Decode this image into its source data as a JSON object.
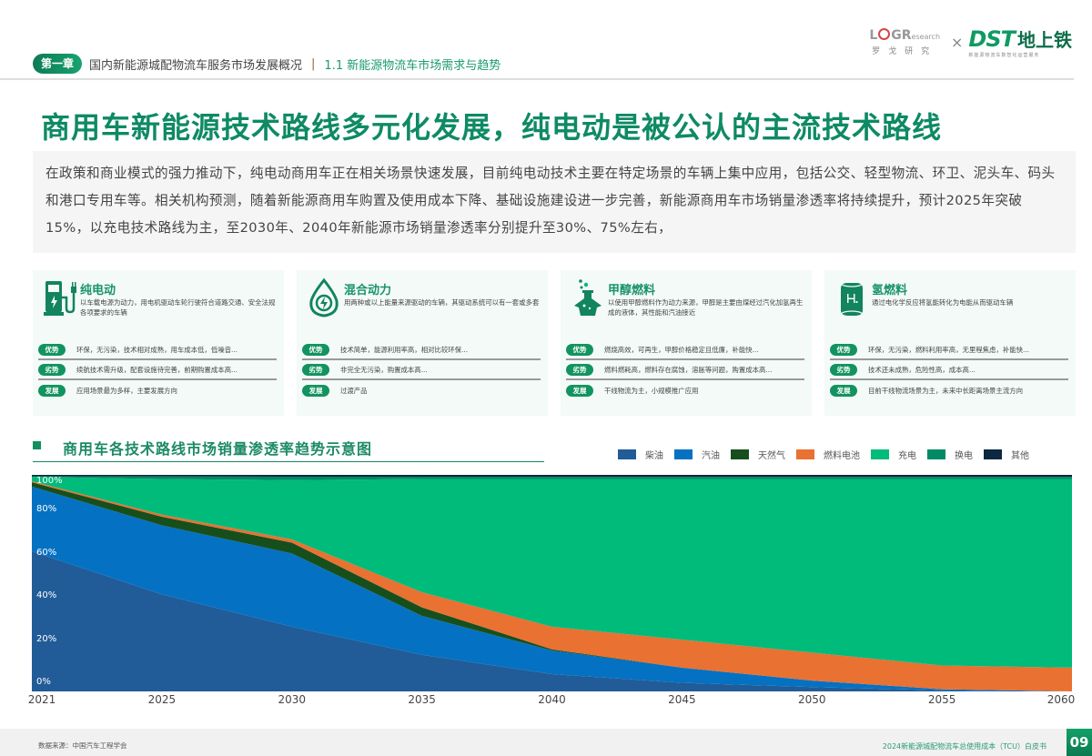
{
  "header": {
    "chapter_badge": "第一章",
    "chapter_title": "国内新能源城配物流车服务市场发展概况",
    "separator": "|",
    "section_title": "1.1 新能源物流车市场需求与趋势",
    "logos": {
      "logr_main_prefix": "L",
      "logr_main_suffix": "GR",
      "logr_small": "esearch",
      "logr_cn": "罗戈研究",
      "cross": "×",
      "dst_mark": "DST",
      "dst_cn": "地上铁",
      "dst_sub": "新能源物流车数智化运营服务"
    }
  },
  "headline": "商用车新能源技术路线多元化发展，纯电动是被公认的主流技术路线",
  "intro": "在政策和商业模式的强力推动下，纯电动商用车正在相关场景快速发展，目前纯电动技术主要在特定场景的车辆上集中应用，包括公交、轻型物流、环卫、泥头车、码头和港口专用车等。相关机构预测，随着新能源商用车购置及使用成本下降、基础设施建设进一步完善，新能源商用车市场销量渗透率将持续提升，预计2025年突破15%，以充电技术路线为主，至2030年、2040年新能源市场销量渗透率分别提升至30%、75%左右，",
  "cards": [
    {
      "icon": "charging-station-icon",
      "title": "纯电动",
      "desc": "以车载电源为动力，用电机驱动车轮行驶符合道路交通、安全法规各项要求的车辆",
      "rows": [
        {
          "tag": "优势",
          "text": "环保，无污染，技术相对成熟，用车成本低，低噪音..."
        },
        {
          "tag": "劣势",
          "text": "续航技术需升级，配套设施待完善，前期购置成本高..."
        },
        {
          "tag": "发展",
          "text": "应用场景最为多样，主要发展方向"
        }
      ]
    },
    {
      "icon": "fuel-drop-bolt-icon",
      "title": "混合动力",
      "desc": "用两种或以上能量来源驱动的车辆，其驱动系统可以有一套或多套",
      "rows": [
        {
          "tag": "优势",
          "text": "技术简单，能源利用率高，相对比较环保..."
        },
        {
          "tag": "劣势",
          "text": "非完全无污染，购置成本高..."
        },
        {
          "tag": "发展",
          "text": "过渡产品"
        }
      ]
    },
    {
      "icon": "flask-icon",
      "title": "甲醇燃料",
      "desc": "以使用甲醇燃料作为动力来源，甲醇是主要由煤经过汽化加氢再生成的液体，其性能和汽油接近",
      "rows": [
        {
          "tag": "优势",
          "text": "燃烧高效，可再生，甲醇价格稳定且低廉，补能快..."
        },
        {
          "tag": "劣势",
          "text": "燃料燃耗高，燃料存在腐蚀，溶胀等问题，购置成本高..."
        },
        {
          "tag": "发展",
          "text": "干线物流为主，小规模推广应用"
        }
      ]
    },
    {
      "icon": "hydrogen-tank-icon",
      "title": "氢燃料",
      "desc": "通过电化学反应将氢能转化为电能从而驱动车辆",
      "rows": [
        {
          "tag": "优势",
          "text": "环保，无污染，燃料利用率高，无里程焦虑，补能快..."
        },
        {
          "tag": "劣势",
          "text": "技术还未成熟，危险性高，成本高..."
        },
        {
          "tag": "发展",
          "text": "目前干线物流场景为主，未来中长距离场景主流方向"
        }
      ]
    }
  ],
  "chart_section": {
    "title": "商用车各技术路线市场销量渗透率趋势示意图"
  },
  "colors": {
    "brand_green": "#0e8a64",
    "diesel": "#215c98",
    "gasoline": "#0571c2",
    "natural_gas": "#174f1c",
    "fuel_cell": "#e97132",
    "charging": "#00bb7a",
    "swap": "#008a66",
    "other": "#0d2840"
  },
  "chart_data": {
    "type": "area",
    "stacked": true,
    "title": "商用车各技术路线市场销量渗透率趋势示意图",
    "xlabel": "",
    "ylabel": "",
    "x": [
      "2021",
      "2025",
      "2030",
      "2035",
      "2040",
      "2045",
      "2050",
      "2055",
      "2060"
    ],
    "yticks": [
      "0%",
      "20%",
      "40%",
      "60%",
      "80%",
      "100%"
    ],
    "ylim": [
      0,
      100
    ],
    "grid": false,
    "legend_position": "top-right",
    "series": [
      {
        "name": "柴油",
        "color": "#215c98",
        "values": [
          65,
          45,
          30,
          17,
          8,
          4,
          2,
          0.5,
          0
        ]
      },
      {
        "name": "汽油",
        "color": "#0571c2",
        "values": [
          30,
          32,
          34,
          18,
          11,
          7,
          3,
          0.5,
          0
        ]
      },
      {
        "name": "天然气",
        "color": "#174f1c",
        "values": [
          2,
          4,
          5,
          4,
          0.5,
          0,
          0,
          0,
          0
        ]
      },
      {
        "name": "燃料电池",
        "color": "#e97132",
        "values": [
          0.5,
          1,
          1.5,
          7,
          10.5,
          13,
          13,
          11,
          11
        ]
      },
      {
        "name": "充电",
        "color": "#00bb7a",
        "values": [
          2,
          16.5,
          27.5,
          52.5,
          68.5,
          74.5,
          80.5,
          86.5,
          87.5
        ]
      },
      {
        "name": "换电",
        "color": "#008a66",
        "values": [
          0.3,
          1.2,
          1.6,
          1.1,
          1.0,
          1.0,
          1.0,
          1.0,
          1.0
        ]
      },
      {
        "name": "其他",
        "color": "#0d2840",
        "values": [
          0.2,
          0.3,
          0.4,
          0.4,
          0.5,
          0.5,
          0.5,
          0.5,
          0.5
        ]
      }
    ]
  },
  "footer": {
    "source": "数据来源：中国汽车工程学会",
    "book_title": "2024新能源城配物流车总使用成本（TCU）白皮书",
    "page": "09"
  }
}
